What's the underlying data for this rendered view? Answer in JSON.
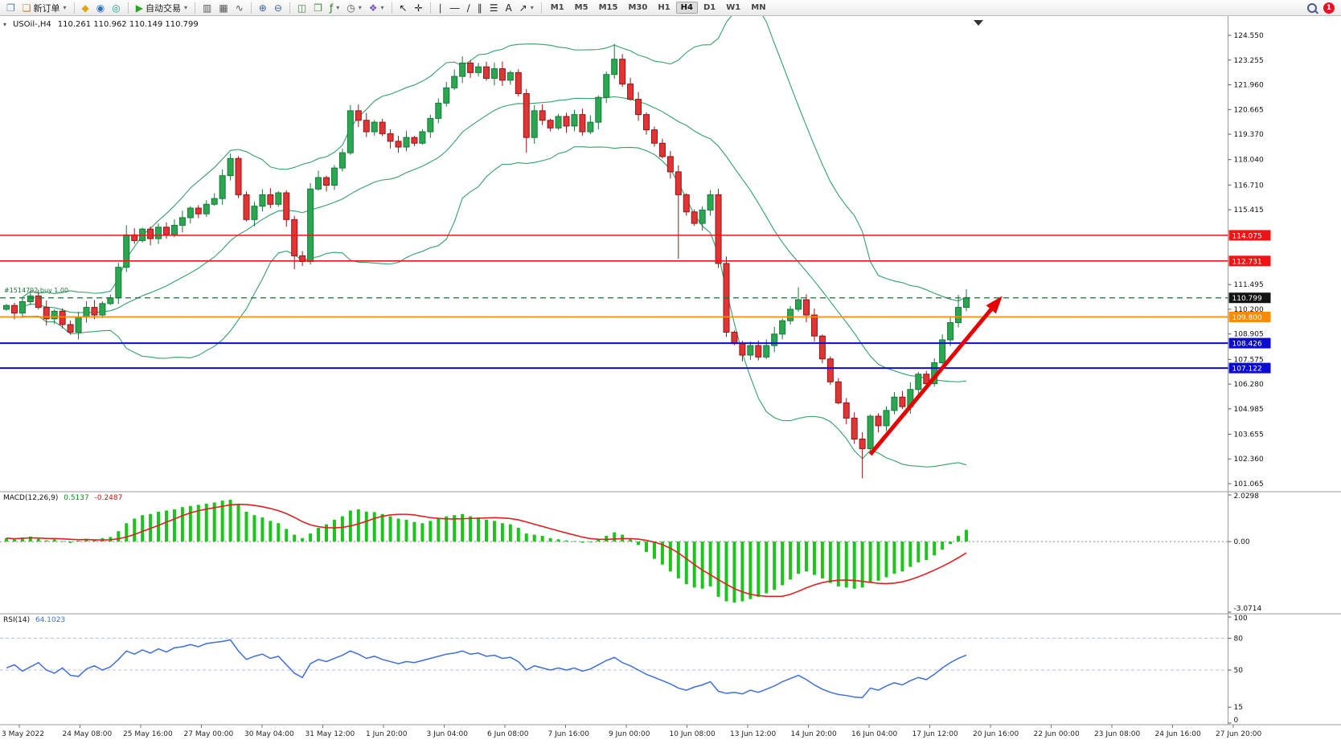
{
  "toolbar": {
    "groups": [
      {
        "items": [
          {
            "name": "chart-window-icon",
            "glyph": "❐",
            "color": "#5b7fb3"
          },
          {
            "name": "new-order-button",
            "glyph": "❏",
            "color": "#c07f2a",
            "label": "新订单",
            "caret": true
          }
        ]
      },
      {
        "items": [
          {
            "name": "gold-diamond-icon",
            "glyph": "◆",
            "color": "#e0a414"
          },
          {
            "name": "market-watch-icon",
            "glyph": "◉",
            "color": "#2f6fc0"
          },
          {
            "name": "signals-icon",
            "glyph": "◎",
            "color": "#15a38a"
          }
        ]
      },
      {
        "items": [
          {
            "name": "autotrade-button",
            "glyph": "▶",
            "color": "#22a822",
            "label": "自动交易",
            "caret": true
          }
        ]
      },
      {
        "items": [
          {
            "name": "bar-chart-icon",
            "glyph": "▥",
            "color": "#555555"
          },
          {
            "name": "candlestick-chart-icon",
            "glyph": "▦",
            "color": "#555555"
          },
          {
            "name": "line-chart-icon",
            "glyph": "∿",
            "color": "#555555"
          }
        ]
      },
      {
        "items": [
          {
            "name": "zoom-in-icon",
            "glyph": "⊕",
            "color": "#3a5fa0"
          },
          {
            "name": "zoom-out-icon",
            "glyph": "⊖",
            "color": "#3a5fa0"
          }
        ]
      },
      {
        "items": [
          {
            "name": "tile-windows-icon",
            "glyph": "◫",
            "color": "#3a8a3a"
          },
          {
            "name": "new-chart-icon",
            "glyph": "❒",
            "color": "#3a8a3a"
          },
          {
            "name": "indicators-icon",
            "glyph": "ƒ",
            "color": "#207a20",
            "caret": true
          },
          {
            "name": "periods-icon",
            "glyph": "◷",
            "color": "#555555",
            "caret": true
          },
          {
            "name": "templates-icon",
            "glyph": "❖",
            "color": "#7a5ab0",
            "caret": true
          }
        ]
      },
      {
        "items": [
          {
            "name": "cursor-icon",
            "glyph": "↖",
            "color": "#222222"
          },
          {
            "name": "crosshair-icon",
            "glyph": "✛",
            "color": "#222222"
          }
        ]
      },
      {
        "items": [
          {
            "name": "vertical-line-icon",
            "glyph": "∣",
            "color": "#222222"
          },
          {
            "name": "horizontal-line-icon",
            "glyph": "―",
            "color": "#222222"
          },
          {
            "name": "trendline-icon",
            "glyph": "∕",
            "color": "#222222"
          },
          {
            "name": "channel-icon",
            "glyph": "∥",
            "color": "#222222"
          },
          {
            "name": "fibonacci-icon",
            "glyph": "☰",
            "color": "#222222"
          },
          {
            "name": "text-label-icon",
            "glyph": "A",
            "color": "#222222"
          },
          {
            "name": "arrows-tool-icon",
            "glyph": "↗",
            "color": "#222222",
            "caret": true
          }
        ]
      }
    ],
    "timeframes": [
      "M1",
      "M5",
      "M15",
      "M30",
      "H1",
      "H4",
      "D1",
      "W1",
      "MN"
    ],
    "active_timeframe": "H4",
    "notification_count": "1"
  },
  "chart": {
    "title": "USOil-,H4",
    "ohlc": "110.261 110.962 110.149 110.799",
    "trade_label": "#1514792 buy 1.00"
  },
  "macd": {
    "name": "MACD(12,26,9)",
    "main": "0.5137",
    "signal": "-0.2487"
  },
  "rsi": {
    "name": "RSI(14)",
    "value": "64.1023"
  },
  "chart_data": {
    "type": "candlestick",
    "symbol": "USOil-",
    "timeframe": "H4",
    "last_bar": {
      "open": 110.261,
      "high": 110.962,
      "low": 110.149,
      "close": 110.799
    },
    "first_open": 110.2,
    "closes": [
      110.4,
      110.0,
      110.6,
      110.9,
      110.3,
      109.7,
      110.1,
      109.4,
      109.0,
      109.8,
      110.3,
      109.9,
      110.5,
      110.8,
      112.4,
      114.1,
      113.8,
      114.4,
      113.9,
      114.5,
      114.1,
      114.6,
      115.0,
      115.5,
      115.2,
      115.7,
      116.0,
      117.2,
      118.1,
      116.2,
      114.9,
      115.6,
      116.2,
      115.7,
      116.3,
      114.9,
      113.0,
      112.7,
      116.5,
      117.1,
      116.7,
      117.6,
      118.4,
      120.6,
      120.1,
      119.5,
      120.0,
      119.4,
      119.0,
      118.7,
      119.2,
      118.9,
      119.5,
      120.2,
      121.0,
      121.8,
      122.4,
      123.1,
      122.6,
      122.9,
      122.3,
      122.8,
      122.2,
      122.6,
      121.5,
      119.2,
      120.6,
      120.1,
      119.7,
      120.3,
      119.8,
      120.4,
      119.5,
      120.0,
      121.3,
      122.5,
      123.3,
      122.0,
      121.2,
      120.4,
      119.6,
      118.9,
      118.2,
      117.4,
      116.2,
      115.3,
      114.7,
      115.4,
      116.2,
      112.6,
      109.0,
      108.4,
      107.8,
      108.3,
      107.7,
      108.3,
      108.9,
      109.6,
      110.2,
      110.7,
      109.9,
      108.8,
      107.6,
      106.4,
      105.3,
      104.5,
      103.4,
      102.9,
      104.6,
      104.1,
      104.9,
      105.6,
      105.1,
      106.0,
      106.8,
      106.3,
      107.4,
      108.6,
      109.5,
      110.3,
      110.8
    ],
    "wick_overrides": {
      "15": {
        "high": 114.6
      },
      "28": {
        "high": 118.35
      },
      "36": {
        "low": 112.3
      },
      "43": {
        "high": 120.9
      },
      "57": {
        "high": 123.45
      },
      "65": {
        "low": 118.4
      },
      "76": {
        "high": 124.1
      },
      "84": {
        "low": 112.85
      },
      "90": {
        "low": 108.75
      },
      "99": {
        "high": 111.35
      },
      "107": {
        "low": 101.35
      },
      "119": {
        "high": 110.95
      },
      "120": {
        "high": 111.25,
        "low": 110.1
      }
    },
    "levels": [
      {
        "name": "resistance-line-1",
        "value": 114.075,
        "label": "114.075",
        "line_color": "#f01414",
        "badge_color": "#f01414",
        "style": "solid",
        "width": 1.6
      },
      {
        "name": "resistance-line-2",
        "value": 112.731,
        "label": "112.731",
        "line_color": "#f01414",
        "badge_color": "#f01414",
        "style": "solid",
        "width": 1.6
      },
      {
        "name": "position-open-line",
        "value": 110.799,
        "label": "110.799",
        "line_color": "#1e6e3a",
        "badge_color": "#141414",
        "style": "dashed",
        "width": 1.2
      },
      {
        "name": "orange-level-line",
        "value": 109.8,
        "label": "109.800",
        "line_color": "#ff8a00",
        "badge_color": "#ff8a00",
        "style": "solid",
        "width": 1.6
      },
      {
        "name": "support-line-1",
        "value": 108.426,
        "label": "108.426",
        "line_color": "#0c0cd0",
        "badge_color": "#0c0cd0",
        "style": "solid",
        "width": 2
      },
      {
        "name": "support-line-2",
        "value": 107.122,
        "label": "107.122",
        "line_color": "#0c0cd0",
        "badge_color": "#0c0cd0",
        "style": "solid",
        "width": 2
      }
    ],
    "price_ticks": [
      "124.550",
      "123.255",
      "121.960",
      "120.665",
      "119.370",
      "118.040",
      "116.710",
      "115.415",
      "111.495",
      "110.200",
      "108.905",
      "107.575",
      "106.280",
      "104.985",
      "103.655",
      "102.360",
      "101.065"
    ],
    "ylim": [
      101.065,
      124.55
    ],
    "indicators": {
      "bollinger": {
        "period": 20,
        "deviation": 2
      },
      "macd": {
        "ylim": [
          -3.0714,
          2.0298
        ],
        "axis_labels": [
          {
            "v": 2.0298,
            "label": "2.0298"
          },
          {
            "v": 0,
            "label": "0.00"
          },
          {
            "v": -3.0714,
            "label": "-3.0714"
          }
        ],
        "histogram": [
          0.15,
          0.1,
          0.18,
          0.22,
          0.12,
          0.05,
          0.1,
          0.02,
          -0.06,
          0.04,
          0.12,
          0.08,
          0.15,
          0.2,
          0.45,
          0.8,
          1.0,
          1.15,
          1.2,
          1.3,
          1.35,
          1.4,
          1.5,
          1.55,
          1.6,
          1.65,
          1.7,
          1.78,
          1.82,
          1.6,
          1.3,
          1.15,
          1.05,
          0.9,
          0.8,
          0.55,
          0.3,
          0.15,
          0.35,
          0.6,
          0.75,
          0.95,
          1.1,
          1.35,
          1.4,
          1.3,
          1.28,
          1.2,
          1.1,
          1.0,
          0.95,
          0.85,
          0.8,
          0.9,
          1.0,
          1.1,
          1.15,
          1.2,
          1.1,
          1.05,
          0.95,
          0.9,
          0.8,
          0.75,
          0.6,
          0.35,
          0.3,
          0.25,
          0.15,
          0.1,
          0.05,
          0.02,
          -0.05,
          -0.02,
          0.1,
          0.25,
          0.4,
          0.3,
          0.1,
          -0.15,
          -0.45,
          -0.75,
          -1.0,
          -1.3,
          -1.6,
          -1.85,
          -2.0,
          -2.05,
          -1.95,
          -2.4,
          -2.6,
          -2.65,
          -2.6,
          -2.5,
          -2.4,
          -2.25,
          -2.1,
          -1.9,
          -1.65,
          -1.4,
          -1.3,
          -1.45,
          -1.6,
          -1.8,
          -1.95,
          -2.0,
          -2.05,
          -2.0,
          -1.8,
          -1.7,
          -1.55,
          -1.4,
          -1.3,
          -1.1,
          -0.9,
          -0.8,
          -0.6,
          -0.35,
          -0.1,
          0.25,
          0.51
        ]
      },
      "rsi": {
        "levels": [
          80,
          50
        ],
        "axis_labels": [
          {
            "v": 100,
            "label": "100"
          },
          {
            "v": 80,
            "label": "80"
          },
          {
            "v": 50,
            "label": "50"
          },
          {
            "v": 15,
            "label": "15"
          },
          {
            "v": 0,
            "label": "0"
          }
        ],
        "values": [
          52,
          55,
          49,
          53,
          57,
          50,
          47,
          52,
          45,
          44,
          51,
          54,
          50,
          53,
          60,
          68,
          65,
          69,
          66,
          70,
          67,
          71,
          72,
          74,
          72,
          75,
          76,
          77,
          78.5,
          68,
          60,
          63,
          65,
          61,
          63,
          55,
          47,
          43,
          56,
          60,
          58,
          61,
          64,
          68,
          65,
          61,
          63,
          60,
          58,
          56,
          58,
          57,
          59,
          61,
          63,
          65,
          66,
          68,
          65,
          66,
          63,
          64,
          61,
          62,
          58,
          50,
          54,
          52,
          50,
          52,
          50,
          52,
          49,
          51,
          55,
          59,
          62,
          57,
          54,
          50,
          46,
          43,
          40,
          37,
          33,
          31,
          34,
          36,
          39,
          30,
          28,
          29,
          27.5,
          31,
          29,
          32,
          35,
          39,
          42,
          45,
          41,
          36,
          32,
          29,
          27,
          26,
          24.5,
          24,
          33,
          31,
          35,
          38,
          36,
          40,
          43,
          41,
          46,
          52,
          57,
          61,
          64.1
        ]
      }
    },
    "annotations": {
      "trend_arrow": {
        "from_bar": 108,
        "from_price": 102.6,
        "to_bar": 124.5,
        "to_price": 110.9,
        "color": "#e60000",
        "width": 5
      }
    },
    "time_labels": [
      "3 May 2022",
      "24 May 08:00",
      "25 May 16:00",
      "27 May 00:00",
      "30 May 04:00",
      "31 May 12:00",
      "1 Jun 20:00",
      "3 Jun 04:00",
      "6 Jun 08:00",
      "7 Jun 16:00",
      "9 Jun 00:00",
      "10 Jun 08:00",
      "13 Jun 12:00",
      "14 Jun 20:00",
      "16 Jun 04:00",
      "17 Jun 12:00",
      "20 Jun 16:00",
      "22 Jun 00:00",
      "23 Jun 08:00",
      "24 Jun 16:00",
      "27 Jun 20:00"
    ],
    "colors": {
      "up": "#2aa84f",
      "up_border": "#17773a",
      "down": "#e23434",
      "down_border": "#8f1818",
      "bollinger": "#35a06a",
      "macd_hist": "#1ec41e",
      "macd_signal": "#e02020",
      "rsi": "#3e6fd8"
    }
  }
}
